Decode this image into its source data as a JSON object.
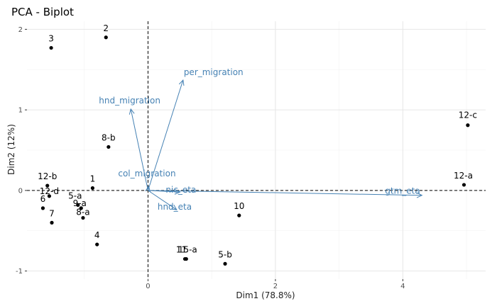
{
  "chart_data": {
    "type": "scatter",
    "title": "PCA - Biplot",
    "xlabel": "Dim1 (78.8%)",
    "ylabel": "Dim2 (12%)",
    "xlim": [
      -1.9,
      5.3
    ],
    "ylim": [
      -1.1,
      2.1
    ],
    "x_ticks": [
      0,
      2,
      4
    ],
    "y_ticks": [
      -1,
      0,
      1,
      2
    ],
    "grid": true,
    "reference_lines": {
      "x": 0,
      "y": 0
    },
    "point_color": "#000000",
    "vector_color": "#4682b4",
    "points": [
      {
        "label": "3",
        "x": -1.52,
        "y": 1.77
      },
      {
        "label": "2",
        "x": -0.66,
        "y": 1.9
      },
      {
        "label": "12-c",
        "x": 5.02,
        "y": 0.81
      },
      {
        "label": "8-b",
        "x": -0.62,
        "y": 0.54
      },
      {
        "label": "12-b",
        "x": -1.58,
        "y": 0.06
      },
      {
        "label": "12-d",
        "x": -1.55,
        "y": -0.07
      },
      {
        "label": "1",
        "x": -0.87,
        "y": 0.03
      },
      {
        "label": "12-a",
        "x": 4.96,
        "y": 0.07
      },
      {
        "label": "5-a",
        "x": -1.1,
        "y": -0.18
      },
      {
        "label": "9-a",
        "x": -1.05,
        "y": -0.22
      },
      {
        "label": "8-a",
        "x": -1.02,
        "y": -0.34
      },
      {
        "label": "6",
        "x": -1.65,
        "y": -0.22
      },
      {
        "label": "7",
        "x": -1.51,
        "y": -0.4
      },
      {
        "label": "10",
        "x": 1.43,
        "y": -0.31
      },
      {
        "label": "4",
        "x": -0.8,
        "y": -0.67
      },
      {
        "label": "11",
        "x": 0.58,
        "y": -0.85
      },
      {
        "label": "15-a",
        "x": 0.6,
        "y": -0.85
      },
      {
        "label": "5-b",
        "x": 1.21,
        "y": -0.91
      }
    ],
    "vectors": [
      {
        "name": "per_migration",
        "x": 0.55,
        "y": 1.37
      },
      {
        "name": "hnd_migration",
        "x": -0.27,
        "y": 1.01
      },
      {
        "name": "col_migration",
        "x": 0.01,
        "y": 0.05
      },
      {
        "name": "nic_eta",
        "x": 0.5,
        "y": -0.02
      },
      {
        "name": "hnd_eta",
        "x": 0.45,
        "y": -0.24
      },
      {
        "name": "gtm_eta",
        "x": 4.3,
        "y": -0.06
      }
    ]
  }
}
